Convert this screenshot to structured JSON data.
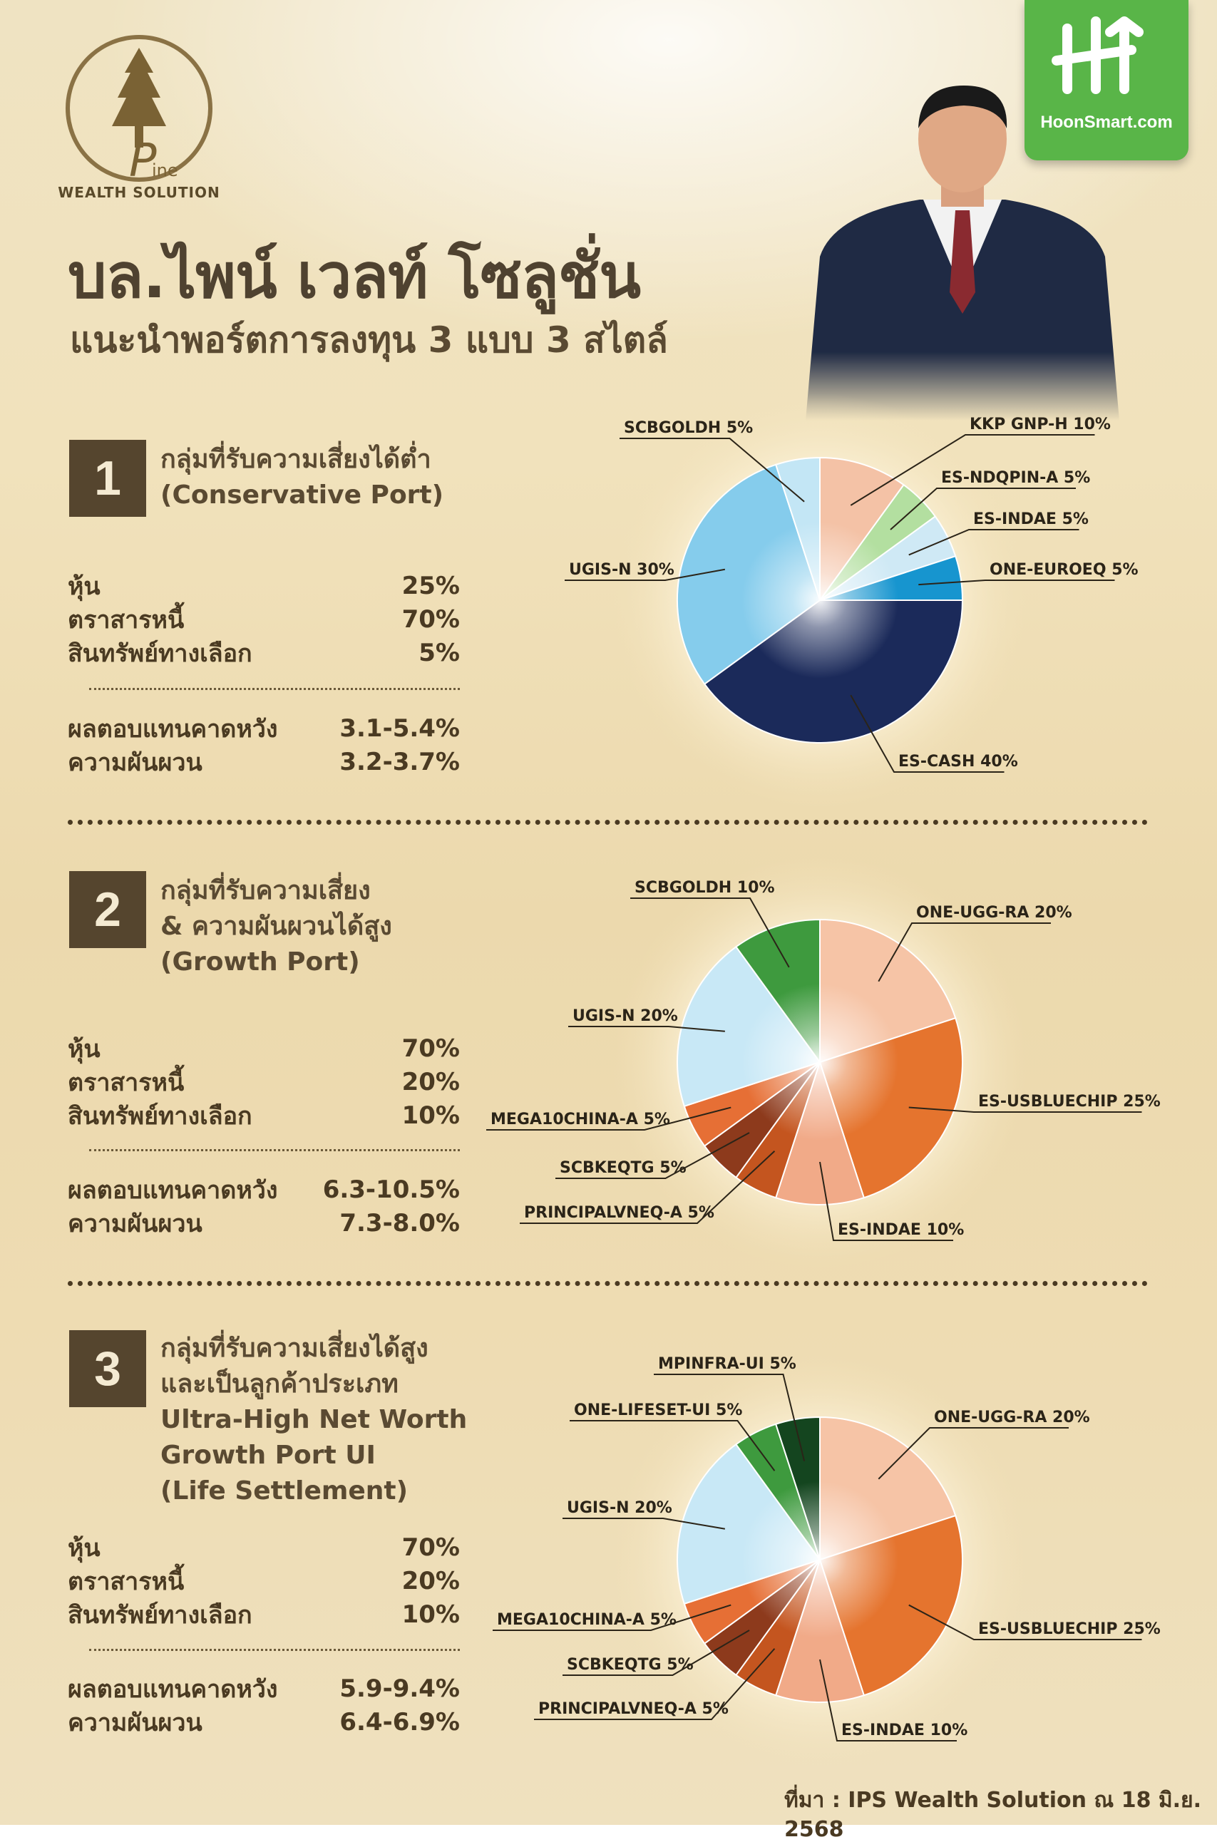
{
  "header": {
    "logo_caption": "WEALTH SOLUTION",
    "logo_letter": "P",
    "logo_suffix": "ine",
    "brand": "HoonSmart.com",
    "title": "บล.ไพน์ เวลท์ โซลูชั่น",
    "subtitle": "แนะนำพอร์ตการลงทุน 3 แบบ 3 สไตล์"
  },
  "sections": [
    {
      "number": "1",
      "title_lines": [
        "กลุ่มที่รับความเสี่ยงได้ต่ำ",
        "(Conservative Port)"
      ],
      "stats": [
        {
          "label": "หุ้น",
          "value": "25%"
        },
        {
          "label": "ตราสารหนี้",
          "value": "70%"
        },
        {
          "label": "สินทรัพย์ทางเลือก",
          "value": "5%"
        }
      ],
      "metrics": [
        {
          "label": "ผลตอบแทนคาดหวัง",
          "value": "3.1-5.4%"
        },
        {
          "label": "ความผันผวน",
          "value": "3.2-3.7%"
        }
      ]
    },
    {
      "number": "2",
      "title_lines": [
        "กลุ่มที่รับความเสี่ยง",
        "& ความผันผวนได้สูง",
        "(Growth Port)"
      ],
      "stats": [
        {
          "label": "หุ้น",
          "value": "70%"
        },
        {
          "label": "ตราสารหนี้",
          "value": "20%"
        },
        {
          "label": "สินทรัพย์ทางเลือก",
          "value": "10%"
        }
      ],
      "metrics": [
        {
          "label": "ผลตอบแทนคาดหวัง",
          "value": "6.3-10.5%"
        },
        {
          "label": "ความผันผวน",
          "value": "7.3-8.0%"
        }
      ]
    },
    {
      "number": "3",
      "title_lines": [
        "กลุ่มที่รับความเสี่ยงได้สูง",
        "และเป็นลูกค้าประเภท",
        "Ultra-High Net Worth",
        "Growth Port UI",
        "(Life Settlement)"
      ],
      "stats": [
        {
          "label": "หุ้น",
          "value": "70%"
        },
        {
          "label": "ตราสารหนี้",
          "value": "20%"
        },
        {
          "label": "สินทรัพย์ทางเลือก",
          "value": "10%"
        }
      ],
      "metrics": [
        {
          "label": "ผลตอบแทนคาดหวัง",
          "value": "5.9-9.4%"
        },
        {
          "label": "ความผันผวน",
          "value": "6.4-6.9%"
        }
      ]
    }
  ],
  "chart_data": [
    {
      "type": "pie",
      "slices": [
        {
          "label": "KKP GNP-H 10%",
          "value": 10,
          "color": "#f4c2a6"
        },
        {
          "label": "ES-NDQPIN-A 5%",
          "value": 5,
          "color": "#b3dfa0"
        },
        {
          "label": "ES-INDAE 5%",
          "value": 5,
          "color": "#cfe9f5"
        },
        {
          "label": "ONE-EUROEQ 5%",
          "value": 5,
          "color": "#1795cf"
        },
        {
          "label": "ES-CASH 40%",
          "value": 40,
          "color": "#1b2a5a"
        },
        {
          "label": "UGIS-N 30%",
          "value": 30,
          "color": "#85ccec"
        },
        {
          "label": "SCBGOLDH 5%",
          "value": 5,
          "color": "#c3e6f5"
        }
      ]
    },
    {
      "type": "pie",
      "slices": [
        {
          "label": "ONE-UGG-RA 20%",
          "value": 20,
          "color": "#f6c4a6"
        },
        {
          "label": "ES-USBLUECHIP 25%",
          "value": 25,
          "color": "#e5742e"
        },
        {
          "label": "ES-INDAE 10%",
          "value": 10,
          "color": "#f1aa88"
        },
        {
          "label": "PRINCIPALVNEQ-A 5%",
          "value": 5,
          "color": "#c4551f"
        },
        {
          "label": "SCBKEQTG 5%",
          "value": 5,
          "color": "#8d3a1c"
        },
        {
          "label": "MEGA10CHINA-A 5%",
          "value": 5,
          "color": "#e66f35"
        },
        {
          "label": "UGIS-N 20%",
          "value": 20,
          "color": "#c8e8f6"
        },
        {
          "label": "SCBGOLDH 10%",
          "value": 10,
          "color": "#3e9a3e"
        }
      ]
    },
    {
      "type": "pie",
      "slices": [
        {
          "label": "ONE-UGG-RA 20%",
          "value": 20,
          "color": "#f6c4a6"
        },
        {
          "label": "ES-USBLUECHIP 25%",
          "value": 25,
          "color": "#e5742e"
        },
        {
          "label": "ES-INDAE 10%",
          "value": 10,
          "color": "#f1aa88"
        },
        {
          "label": "PRINCIPALVNEQ-A 5%",
          "value": 5,
          "color": "#c4551f"
        },
        {
          "label": "SCBKEQTG 5%",
          "value": 5,
          "color": "#8d3a1c"
        },
        {
          "label": "MEGA10CHINA-A 5%",
          "value": 5,
          "color": "#e66f35"
        },
        {
          "label": "UGIS-N 20%",
          "value": 20,
          "color": "#c8e8f6"
        },
        {
          "label": "ONE-LIFESET-UI 5%",
          "value": 5,
          "color": "#3e9a3e"
        },
        {
          "label": "MPINFRA-UI 5%",
          "value": 5,
          "color": "#14451f"
        }
      ]
    }
  ],
  "footer": {
    "source": "ที่มา : IPS Wealth Solution ณ 18 มิ.ย. 2568"
  }
}
